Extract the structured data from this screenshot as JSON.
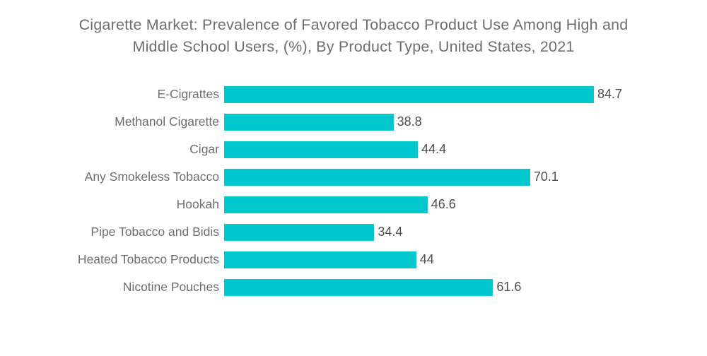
{
  "page": {
    "background": "#ffffff"
  },
  "title_lines": [
    "Cigarette Market: Prevalence of Favored Tobacco Product Use Among High and",
    "Middle School Users, (%), By Product Type, United States, 2021"
  ],
  "chart_data": {
    "type": "bar",
    "orientation": "horizontal",
    "title": "Cigarette Market: Prevalence of Favored Tobacco Product Use Among High and Middle School Users, (%), By Product Type, United States, 2021",
    "categories": [
      "E-Cigrattes",
      "Methanol Cigarette",
      "Cigar",
      "Any Smokeless Tobacco",
      "Hookah",
      "Pipe Tobacco and Bidis",
      "Heated Tobacco Products",
      "Nicotine Pouches"
    ],
    "values": [
      84.7,
      38.8,
      44.4,
      70.1,
      46.6,
      34.4,
      44,
      61.6
    ],
    "value_labels": [
      "84.7",
      "38.8",
      "44.4",
      "70.1",
      "46.6",
      "34.4",
      "44",
      "61.6"
    ],
    "xlabel": "",
    "ylabel": "",
    "xlim": [
      0,
      100
    ],
    "grid": false,
    "legend": false,
    "bar_color": "#00c8ce",
    "label_color": "#6d6e71",
    "value_color": "#4d4e50",
    "title_color": "#6d6e71"
  }
}
